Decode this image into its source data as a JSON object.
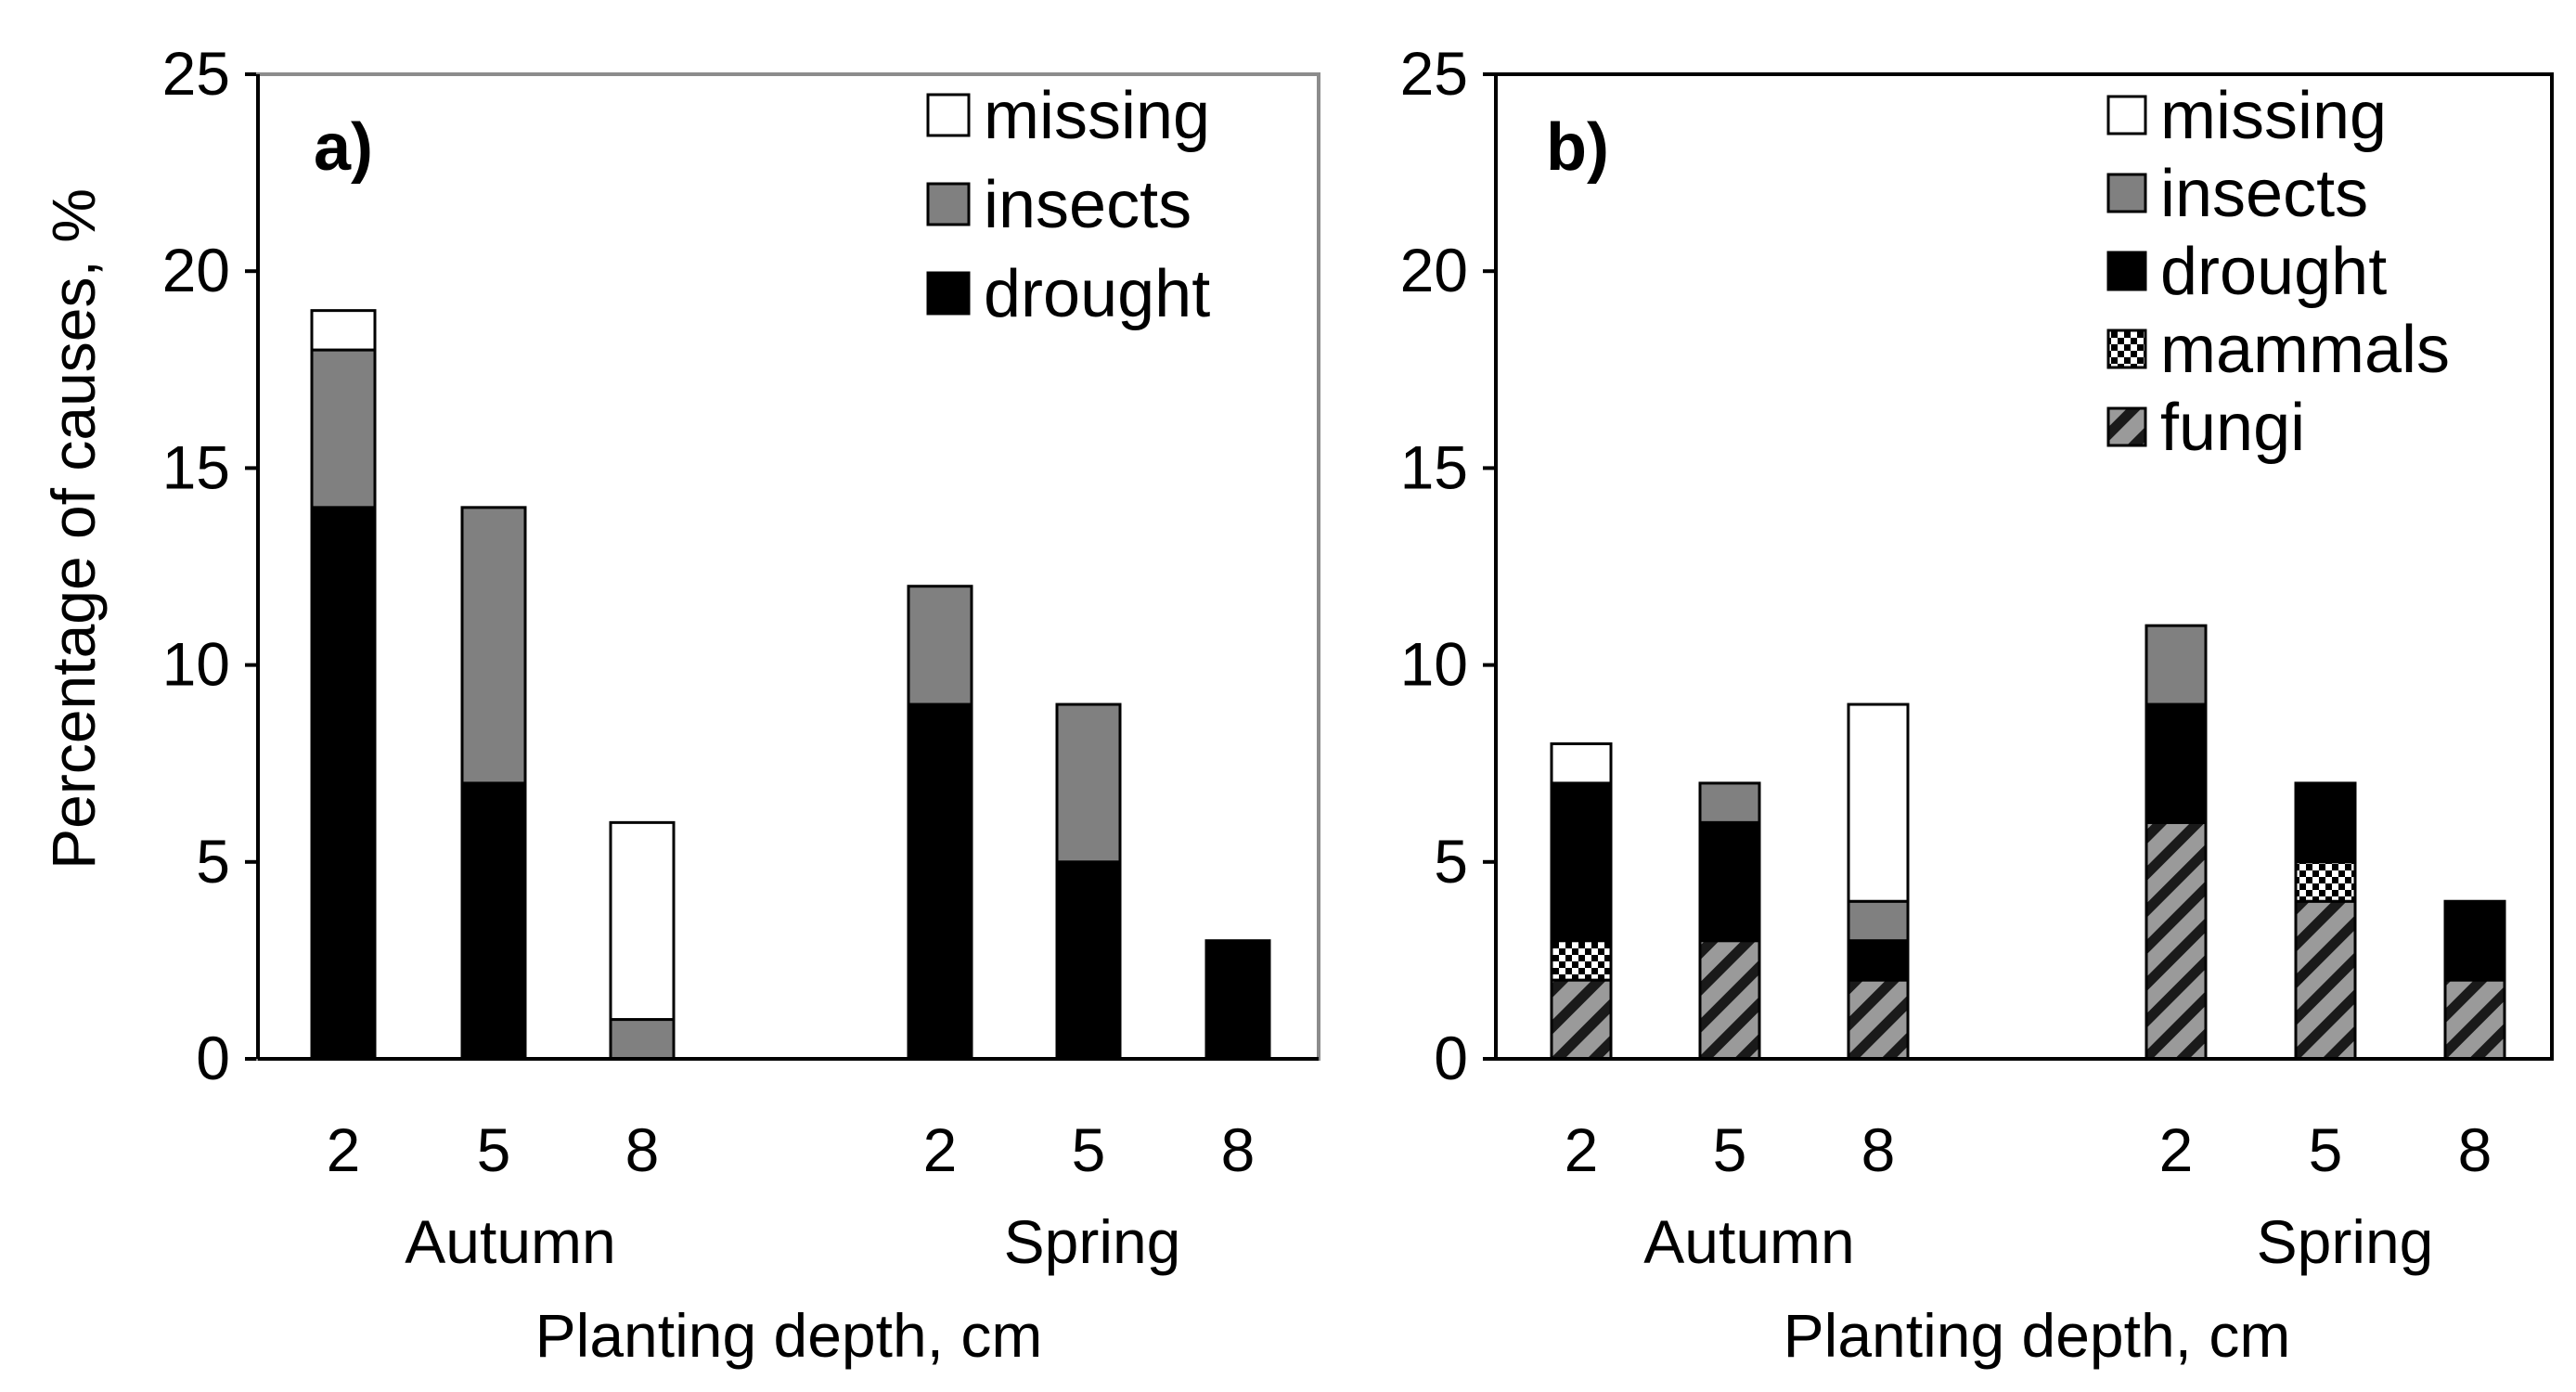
{
  "chart_data": [
    {
      "panel": "a)",
      "type": "bar",
      "stacked": true,
      "groups": [
        "Autumn",
        "Spring"
      ],
      "categories": [
        "2",
        "5",
        "8",
        "2",
        "5",
        "8"
      ],
      "category_groups": [
        "Autumn",
        "Autumn",
        "Autumn",
        "Spring",
        "Spring",
        "Spring"
      ],
      "series": [
        {
          "name": "drought",
          "color": "#000000",
          "pattern": "solid",
          "values": [
            14,
            7,
            0,
            9,
            5,
            3
          ]
        },
        {
          "name": "insects",
          "color": "#808080",
          "pattern": "solid",
          "values": [
            4,
            7,
            1,
            3,
            4,
            0
          ]
        },
        {
          "name": "missing",
          "color": "#ffffff",
          "pattern": "solid",
          "values": [
            1,
            0,
            5,
            0,
            0,
            0
          ]
        }
      ],
      "legend_order": [
        "missing",
        "insects",
        "drought"
      ],
      "ylabel": "Percentage of causes, %",
      "xlabel": "Planting depth, cm",
      "ylim": [
        0,
        25
      ],
      "yticks": [
        0,
        5,
        10,
        15,
        20,
        25
      ],
      "legend_position": "top-right"
    },
    {
      "panel": "b)",
      "type": "bar",
      "stacked": true,
      "groups": [
        "Autumn",
        "Spring"
      ],
      "categories": [
        "2",
        "5",
        "8",
        "2",
        "5",
        "8"
      ],
      "category_groups": [
        "Autumn",
        "Autumn",
        "Autumn",
        "Spring",
        "Spring",
        "Spring"
      ],
      "series": [
        {
          "name": "fungi",
          "color": "#808080",
          "pattern": "hatch",
          "values": [
            2,
            3,
            2,
            6,
            4,
            2
          ]
        },
        {
          "name": "mammals",
          "color": "#000000",
          "pattern": "checker",
          "values": [
            1,
            0,
            0,
            0,
            1,
            0
          ]
        },
        {
          "name": "drought",
          "color": "#000000",
          "pattern": "solid",
          "values": [
            4,
            3,
            1,
            3,
            2,
            2
          ]
        },
        {
          "name": "insects",
          "color": "#808080",
          "pattern": "solid",
          "values": [
            0,
            1,
            1,
            2,
            0,
            0
          ]
        },
        {
          "name": "missing",
          "color": "#ffffff",
          "pattern": "solid",
          "values": [
            1,
            0,
            5,
            0,
            0,
            0
          ]
        }
      ],
      "legend_order": [
        "missing",
        "insects",
        "drought",
        "mammals",
        "fungi"
      ],
      "ylabel": "",
      "xlabel": "Planting depth, cm",
      "ylim": [
        0,
        25
      ],
      "yticks": [
        0,
        5,
        10,
        15,
        20,
        25
      ],
      "legend_position": "top-right"
    }
  ]
}
